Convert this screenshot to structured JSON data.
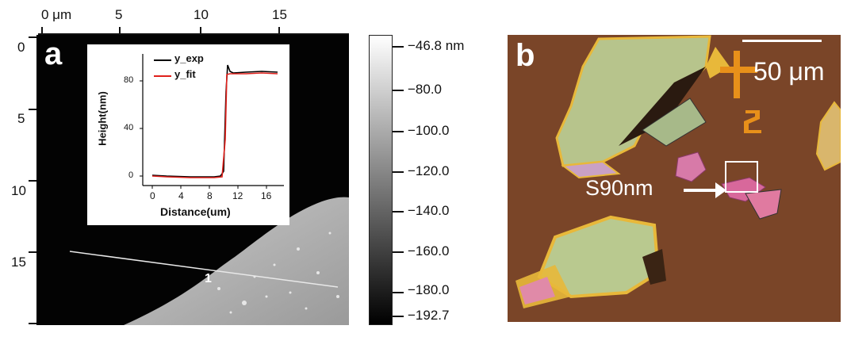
{
  "figure": {
    "panel_a": {
      "label": "a",
      "x_ticks": [
        "0 μm",
        "5",
        "10",
        "15"
      ],
      "y_ticks": [
        "0",
        "5",
        "10",
        "15"
      ],
      "line_marker": "1",
      "colorbar": {
        "ticks": [
          "−46.8 nm",
          "−80.0",
          "−100.0",
          "−120.0",
          "−140.0",
          "−160.0",
          "−180.0",
          "−192.7"
        ],
        "gradient": [
          "#ffffff",
          "#000000"
        ]
      },
      "inset": {
        "xlabel": "Distance(um)",
        "ylabel": "Height(nm)",
        "x_ticks": [
          "0",
          "4",
          "8",
          "12",
          "16"
        ],
        "y_ticks": [
          "0",
          "40",
          "80"
        ],
        "legend": [
          {
            "name": "y_exp",
            "color": "#000000"
          },
          {
            "name": "y_fit",
            "color": "#e0201b"
          }
        ]
      }
    },
    "panel_b": {
      "label": "b",
      "scale_bar_label": "50 μm",
      "annotation": "S90nm",
      "background_color": "#7a4528"
    }
  }
}
